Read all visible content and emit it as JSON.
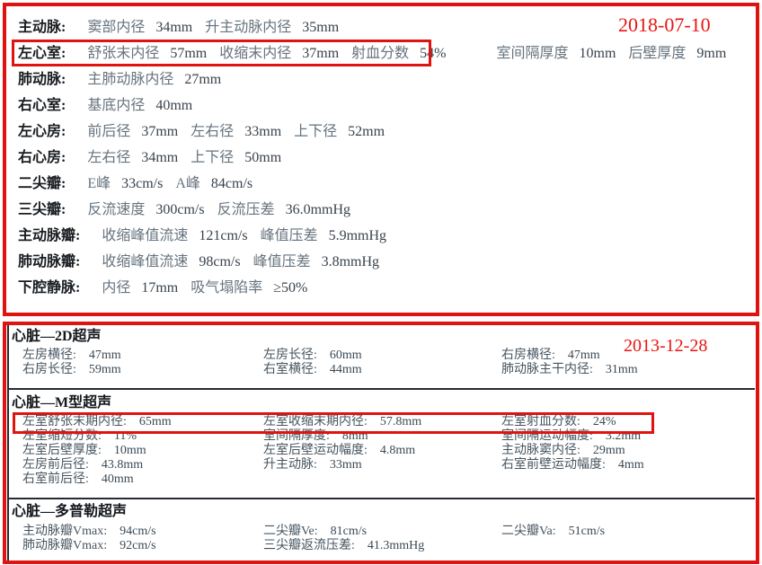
{
  "colors": {
    "frame_red": "#df1310",
    "annotation_red": "#e81510",
    "label_black": "#191d21",
    "value_gray": "#46545f"
  },
  "report1": {
    "date": "2018-07-10",
    "rows": [
      {
        "label": "主动脉:",
        "pairs": [
          [
            "窦部内径",
            "34mm"
          ],
          [
            "升主动脉内径",
            "35mm"
          ]
        ]
      },
      {
        "label": "左心室:",
        "wide_gap_before": 3,
        "pairs": [
          [
            "舒张末内径",
            "57mm"
          ],
          [
            "收缩末内径",
            "37mm"
          ],
          [
            "射血分数",
            "54%"
          ],
          [
            "室间隔厚度",
            "10mm"
          ],
          [
            "后壁厚度",
            "9mm"
          ]
        ]
      },
      {
        "label": "肺动脉:",
        "pairs": [
          [
            "主肺动脉内径",
            "27mm"
          ]
        ]
      },
      {
        "label": "右心室:",
        "pairs": [
          [
            "基底内径",
            "40mm"
          ]
        ]
      },
      {
        "label": "左心房:",
        "pairs": [
          [
            "前后径",
            "37mm"
          ],
          [
            "左右径",
            "33mm"
          ],
          [
            "上下径",
            "52mm"
          ]
        ]
      },
      {
        "label": "右心房:",
        "pairs": [
          [
            "左右径",
            "34mm"
          ],
          [
            "上下径",
            "50mm"
          ]
        ]
      },
      {
        "label": "二尖瓣:",
        "pairs": [
          [
            "E峰",
            "33cm/s"
          ],
          [
            "A峰",
            "84cm/s"
          ]
        ]
      },
      {
        "label": "三尖瓣:",
        "pairs": [
          [
            "反流速度",
            "300cm/s"
          ],
          [
            "反流压差",
            "36.0mmHg"
          ]
        ]
      },
      {
        "label": "主动脉瓣:",
        "pairs": [
          [
            "收缩峰值流速",
            "121cm/s"
          ],
          [
            "峰值压差",
            "5.9mmHg"
          ]
        ]
      },
      {
        "label": "肺动脉瓣:",
        "pairs": [
          [
            "收缩峰值流速",
            "98cm/s"
          ],
          [
            "峰值压差",
            "3.8mmHg"
          ]
        ]
      },
      {
        "label": "下腔静脉:",
        "pairs": [
          [
            "内径",
            "17mm"
          ],
          [
            "吸气塌陷率",
            "≥50%"
          ]
        ]
      }
    ]
  },
  "report2": {
    "date": "2013-12-28",
    "sections": [
      {
        "title": "心脏—2D超声",
        "rows": [
          [
            [
              "左房横径:",
              "47mm"
            ],
            [
              "左房长径:",
              "60mm"
            ],
            [
              "右房横径:",
              "47mm"
            ]
          ],
          [
            [
              "右房长径:",
              "59mm"
            ],
            [
              "右室横径:",
              "44mm"
            ],
            [
              "肺动脉主干内径:",
              "31mm"
            ]
          ]
        ]
      },
      {
        "title": "心脏—M型超声",
        "rows": [
          [
            [
              "左室舒张末期内径:",
              "65mm"
            ],
            [
              "左室收缩末期内径:",
              "57.8mm"
            ],
            [
              "左室射血分数:",
              "24%"
            ]
          ],
          [
            [
              "左室缩短分数:",
              "11%"
            ],
            [
              "室间隔厚度:",
              "8mm"
            ],
            [
              "室间隔运动幅度:",
              "3.2mm"
            ]
          ],
          [
            [
              "左室后壁厚度:",
              "10mm"
            ],
            [
              "左室后壁运动幅度:",
              "4.8mm"
            ],
            [
              "主动脉窦内径:",
              "29mm"
            ]
          ],
          [
            [
              "左房前后径:",
              "43.8mm"
            ],
            [
              "升主动脉:",
              "33mm"
            ],
            [
              "右室前壁运动幅度:",
              "4mm"
            ]
          ],
          [
            [
              "右室前后径:",
              "40mm"
            ]
          ]
        ]
      },
      {
        "title": "心脏—多普勒超声",
        "rows": [
          [
            [
              "主动脉瓣Vmax:",
              "94cm/s"
            ],
            [
              "二尖瓣Ve:",
              "81cm/s"
            ],
            [
              "二尖瓣Va:",
              "51cm/s"
            ]
          ],
          [
            [
              "肺动脉瓣Vmax:",
              "92cm/s"
            ],
            [
              "三尖瓣返流压差:",
              "41.3mmHg"
            ]
          ]
        ]
      }
    ]
  }
}
